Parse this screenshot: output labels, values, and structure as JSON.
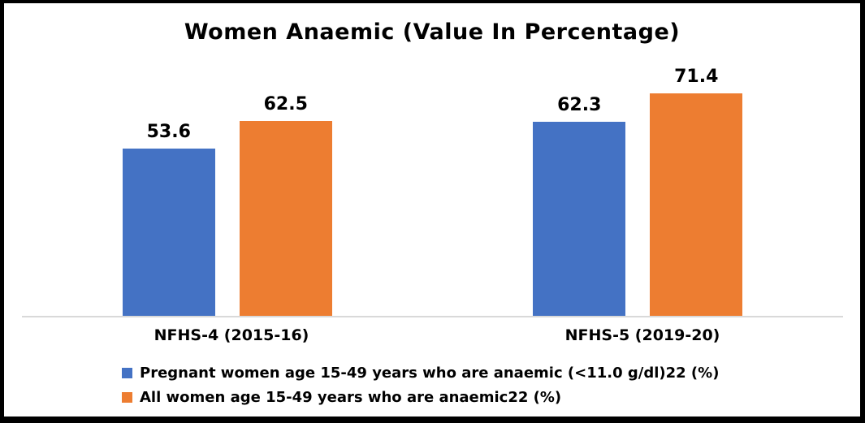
{
  "chart_data": {
    "type": "bar",
    "title": "Women Anaemic (Value In Percentage)",
    "categories": [
      "NFHS-4 (2015-16)",
      "NFHS-5 (2019-20)"
    ],
    "series": [
      {
        "name": "Pregnant women age 15-49 years who are anaemic (<11.0 g/dl)22 (%)",
        "color": "#4472C4",
        "values": [
          53.6,
          62.3
        ]
      },
      {
        "name": "All women age 15-49 years who are anaemic22 (%)",
        "color": "#ED7D31",
        "values": [
          62.5,
          71.4
        ]
      }
    ],
    "ylim": [
      0,
      80
    ],
    "grid": false,
    "y_axis_visible": false,
    "legend_position": "bottom-left",
    "axis_line_color": "#D9D9D9",
    "frame_border_color": "#000000",
    "background_color": "#FFFFFF",
    "data_labels": [
      "53.6",
      "62.5",
      "62.3",
      "71.4"
    ]
  }
}
